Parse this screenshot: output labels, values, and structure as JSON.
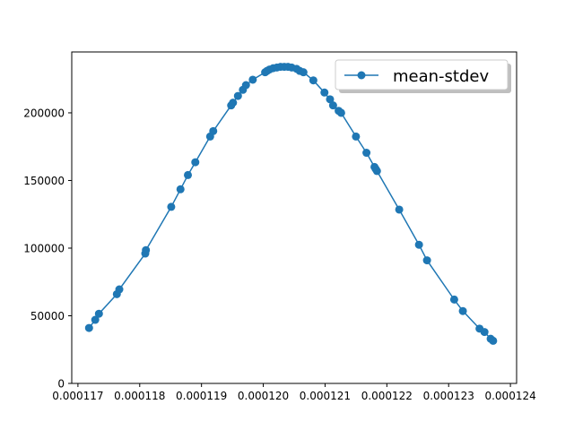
{
  "chart_data": {
    "type": "line",
    "title": "",
    "xlabel": "",
    "ylabel": "",
    "xlim": [
      0.0001169,
      0.0001241
    ],
    "ylim": [
      0,
      245000
    ],
    "xticks": [
      0.000117,
      0.000118,
      0.000119,
      0.00012,
      0.000121,
      0.000122,
      0.000123,
      0.000124
    ],
    "xtick_labels": [
      "0.000117",
      "0.000118",
      "0.000119",
      "0.000120",
      "0.000121",
      "0.000122",
      "0.000123",
      "0.000124"
    ],
    "yticks": [
      0,
      50000,
      100000,
      150000,
      200000
    ],
    "ytick_labels": [
      "0",
      "50000",
      "100000",
      "150000",
      "200000"
    ],
    "grid": false,
    "legend": {
      "placement": "top-right",
      "entries": [
        "mean-stdev"
      ]
    },
    "series": [
      {
        "name": "mean-stdev",
        "color": "#1f77b4",
        "marker": "circle",
        "x": [
          0.00011718,
          0.00011728,
          0.00011734,
          0.00011763,
          0.00011767,
          0.00011809,
          0.0001181,
          0.00011851,
          0.00011866,
          0.00011878,
          0.0001189,
          0.00011914,
          0.00011919,
          0.00011948,
          0.00011951,
          0.00011959,
          0.00011967,
          0.00011972,
          0.00011983,
          0.00012003,
          0.00012006,
          0.0001201,
          0.00012016,
          0.00012022,
          0.00012028,
          0.00012034,
          0.0001204,
          0.00012046,
          0.00012054,
          0.00012059,
          0.00012065,
          0.00012081,
          0.00012099,
          0.00012108,
          0.00012113,
          0.00012122,
          0.00012126,
          0.0001215,
          0.00012167,
          0.0001218,
          0.00012182,
          0.00012184,
          0.0001222,
          0.00012252,
          0.00012265,
          0.00012309,
          0.00012323,
          0.0001235,
          0.00012358,
          0.00012368,
          0.00012372
        ],
        "y": [
          41000,
          47000,
          51500,
          66000,
          69500,
          96000,
          98500,
          130500,
          143500,
          154000,
          163500,
          182500,
          186500,
          205500,
          207500,
          212500,
          217000,
          220500,
          224500,
          230000,
          231000,
          232000,
          233000,
          233500,
          234000,
          234000,
          234000,
          233500,
          232500,
          231000,
          230000,
          224000,
          215000,
          210000,
          205500,
          201500,
          200000,
          182500,
          170500,
          160000,
          158500,
          157000,
          128500,
          102500,
          91000,
          62000,
          53500,
          40500,
          38000,
          33000,
          31500
        ]
      }
    ]
  }
}
